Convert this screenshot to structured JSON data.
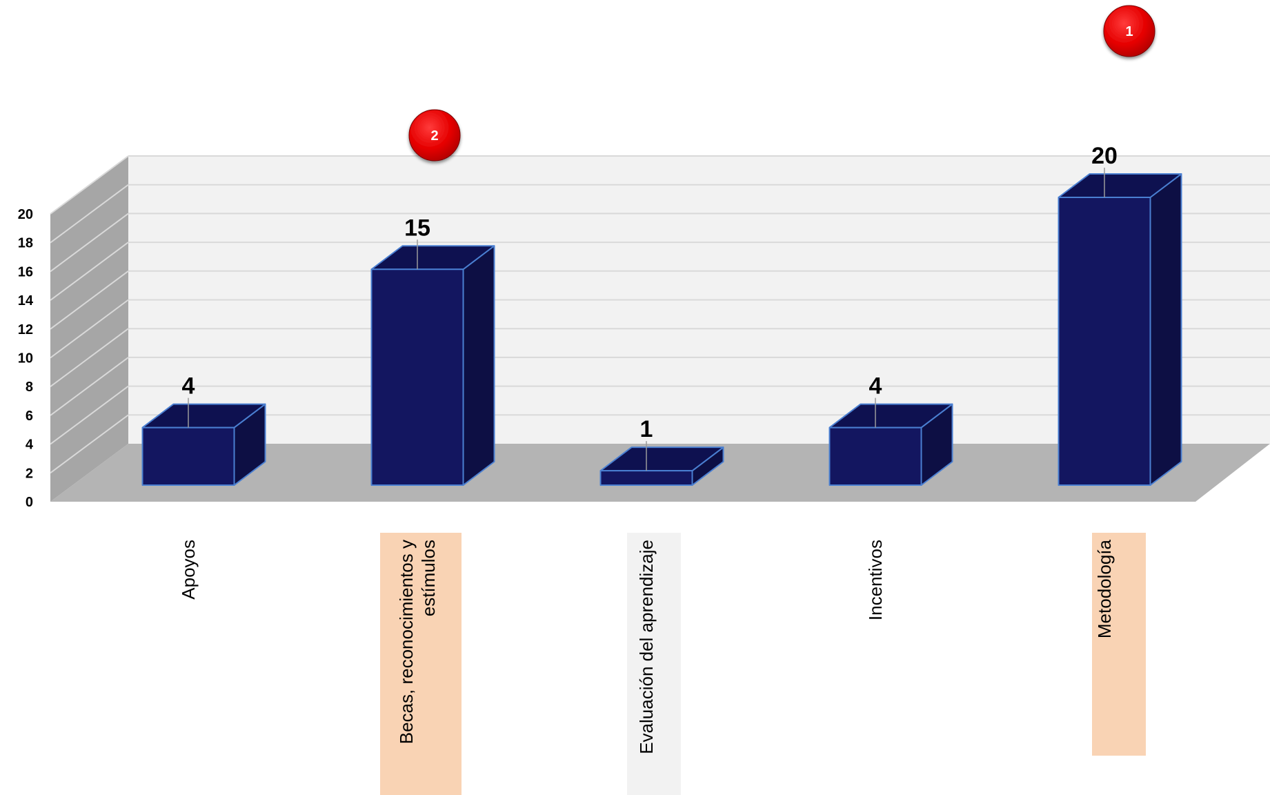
{
  "chart_data": {
    "type": "bar",
    "categories": [
      "Apoyos",
      "Becas, reconocimientos y estímulos",
      "Evaluación del aprendizaje",
      "Incentivos",
      "Metodología"
    ],
    "category_lines": [
      [
        "Apoyos"
      ],
      [
        "Becas, reconocimientos y",
        "estímulos"
      ],
      [
        "Evaluación del aprendizaje"
      ],
      [
        "Incentivos"
      ],
      [
        "Metodología"
      ]
    ],
    "values": [
      4,
      15,
      1,
      4,
      20
    ],
    "y_ticks": [
      "0",
      "2",
      "4",
      "6",
      "8",
      "10",
      "12",
      "14",
      "16",
      "18",
      "20"
    ],
    "ylim": [
      0,
      20
    ],
    "grid": true,
    "highlighted_categories": [
      1,
      4
    ],
    "rank_badges": [
      {
        "category": 4,
        "label": "1"
      },
      {
        "category": 1,
        "label": "2"
      }
    ],
    "colors": {
      "bar_front": "#131660",
      "bar_side": "#0d0f44",
      "bar_top": "#0e1150",
      "bar_edge": "#4a7fd1",
      "back_wall": "#f2f2f2",
      "side_wall": "#a6a6a6",
      "floor": "#b4b4b4",
      "gridline": "#d9d9d9",
      "label_highlight": "#f9d3b4",
      "label_gray": "#f2f2f2",
      "badge": "#e50000"
    }
  }
}
